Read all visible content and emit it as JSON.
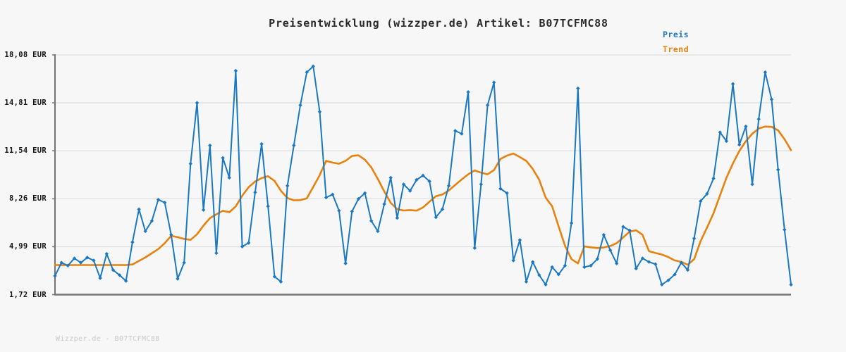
{
  "title": "Preisentwicklung (wizzper.de) Artikel: B07TCFMC88",
  "legend": {
    "preis": "Preis",
    "trend": "Trend"
  },
  "footer": "Wizzper.de - B07TCFMC88",
  "colors": {
    "preis": "#1b78c2",
    "trend": "#e8820e",
    "grid": "#e0e0e0",
    "axis": "#747474",
    "title_text": "#2a2a2a",
    "ylabel_text": "#151515",
    "footer_text": "#c9c9c9",
    "background": "#f7f7f7"
  },
  "chart_data": {
    "type": "line",
    "title": "Preisentwicklung (wizzper.de) Artikel: B07TCFMC88",
    "ylabel": "EUR",
    "ylim": [
      1.72,
      18.08
    ],
    "grid": true,
    "legend_position": "top-right",
    "yticks": [
      {
        "value": 18.08,
        "label": "18,08 EUR"
      },
      {
        "value": 14.81,
        "label": "14,81 EUR"
      },
      {
        "value": 11.54,
        "label": "11,54 EUR"
      },
      {
        "value": 8.26,
        "label": "8,26 EUR"
      },
      {
        "value": 4.99,
        "label": "4,99 EUR"
      },
      {
        "value": 1.72,
        "label": "1,72 EUR"
      }
    ],
    "series": [
      {
        "name": "Preis",
        "color": "#1b78c2",
        "marker": "diamond",
        "values": [
          3.0,
          3.9,
          3.7,
          4.2,
          3.9,
          4.25,
          4.05,
          2.85,
          4.5,
          3.4,
          3.05,
          2.65,
          5.3,
          7.55,
          6.05,
          6.75,
          8.2,
          8.0,
          5.8,
          2.8,
          3.9,
          10.65,
          14.81,
          7.5,
          11.9,
          4.55,
          11.05,
          9.7,
          17.0,
          5.0,
          5.25,
          8.7,
          12.0,
          7.75,
          2.95,
          2.6,
          9.15,
          11.9,
          14.65,
          16.9,
          17.3,
          14.2,
          8.35,
          8.55,
          7.45,
          3.85,
          7.4,
          8.25,
          8.65,
          6.75,
          6.05,
          7.9,
          9.7,
          6.95,
          9.25,
          8.8,
          9.55,
          9.85,
          9.45,
          7.0,
          7.55,
          9.15,
          12.9,
          12.7,
          15.55,
          4.9,
          9.25,
          14.65,
          16.2,
          8.95,
          8.65,
          4.05,
          5.45,
          2.6,
          3.95,
          3.05,
          2.4,
          3.6,
          3.1,
          3.7,
          6.6,
          15.8,
          3.6,
          3.7,
          4.15,
          5.8,
          4.75,
          3.85,
          6.35,
          6.1,
          3.5,
          4.2,
          3.95,
          3.8,
          2.4,
          2.7,
          3.1,
          3.9,
          3.4,
          5.55,
          8.1,
          8.6,
          9.65,
          12.8,
          12.2,
          16.1,
          11.95,
          13.2,
          9.25,
          13.7,
          16.9,
          15.05,
          10.25,
          6.15,
          2.4
        ]
      },
      {
        "name": "Trend",
        "color": "#e8820e",
        "marker": "none",
        "values": [
          3.74,
          3.74,
          3.74,
          3.74,
          3.74,
          3.74,
          3.74,
          3.74,
          3.74,
          3.74,
          3.74,
          3.74,
          3.78,
          4.02,
          4.26,
          4.55,
          4.83,
          5.23,
          5.73,
          5.64,
          5.52,
          5.46,
          5.84,
          6.43,
          6.94,
          7.2,
          7.44,
          7.34,
          7.74,
          8.47,
          9.05,
          9.44,
          9.67,
          9.8,
          9.48,
          8.8,
          8.31,
          8.16,
          8.17,
          8.29,
          9.07,
          9.88,
          10.85,
          10.73,
          10.65,
          10.85,
          11.18,
          11.23,
          10.93,
          10.4,
          9.62,
          8.76,
          7.99,
          7.55,
          7.46,
          7.49,
          7.45,
          7.67,
          8.06,
          8.43,
          8.55,
          8.83,
          9.21,
          9.58,
          9.93,
          10.2,
          10.04,
          9.93,
          10.22,
          10.98,
          11.21,
          11.35,
          11.11,
          10.85,
          10.3,
          9.56,
          8.34,
          7.75,
          6.38,
          5.05,
          4.14,
          3.85,
          5.01,
          4.95,
          4.9,
          4.94,
          5.04,
          5.23,
          5.62,
          6.02,
          6.11,
          5.8,
          4.69,
          4.56,
          4.46,
          4.28,
          4.05,
          3.96,
          3.76,
          4.14,
          5.37,
          6.3,
          7.27,
          8.49,
          9.69,
          10.67,
          11.52,
          12.19,
          12.7,
          13.06,
          13.19,
          13.17,
          12.93,
          12.33,
          11.58
        ]
      }
    ]
  }
}
